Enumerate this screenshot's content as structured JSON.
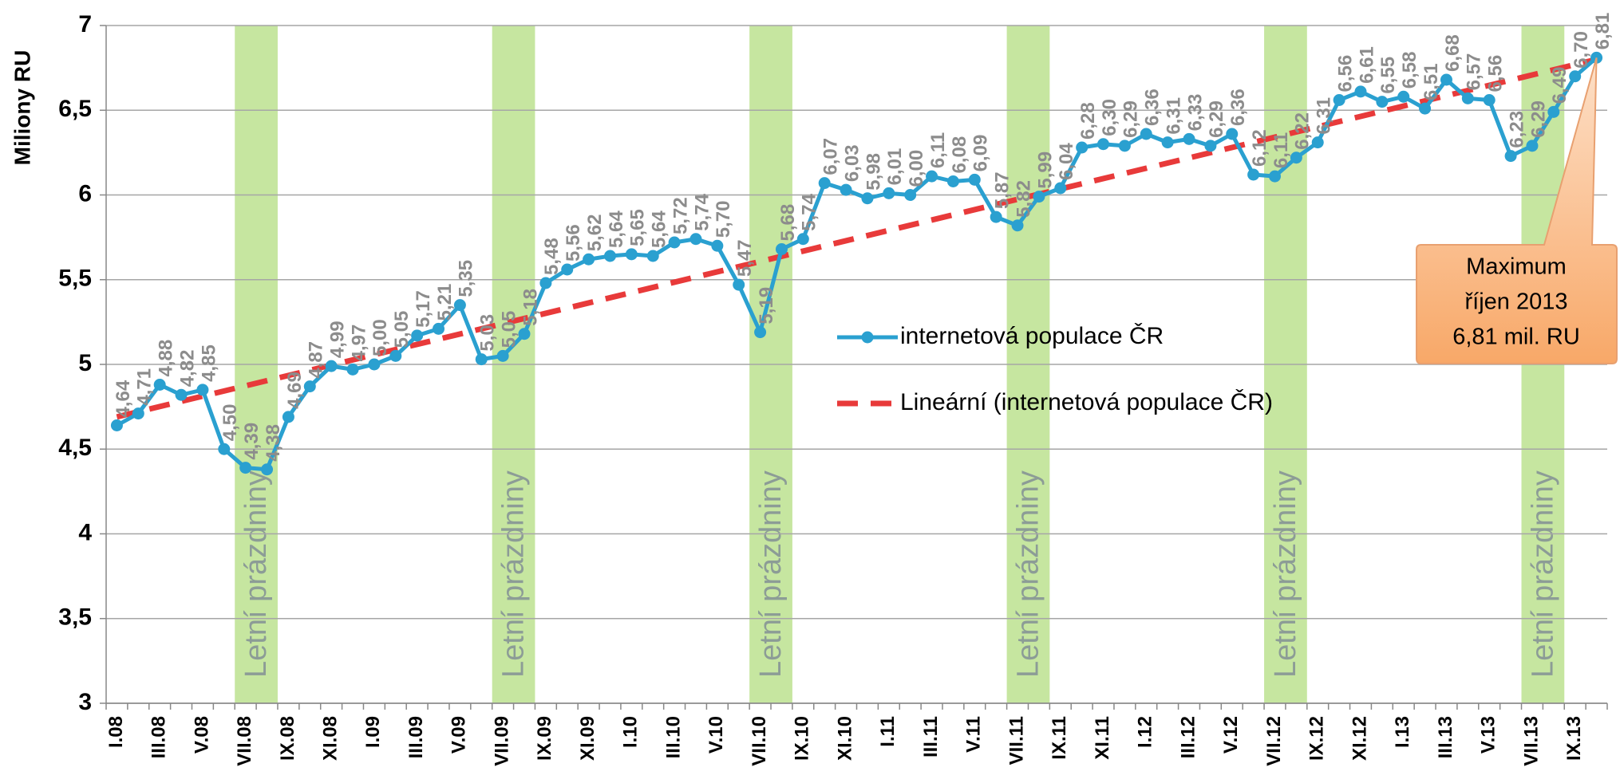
{
  "chart_data": {
    "type": "line",
    "y_label": "Miliony RU",
    "categories": [
      "I.08",
      null,
      "III.08",
      null,
      "V.08",
      null,
      "VII.08",
      null,
      "IX.08",
      null,
      "XI.08",
      null,
      "I.09",
      null,
      "III.09",
      null,
      "V.09",
      null,
      "VII.09",
      null,
      "IX.09",
      null,
      "XI.09",
      null,
      "I.10",
      null,
      "III.10",
      null,
      "V.10",
      null,
      "VII.10",
      null,
      "IX.10",
      null,
      "XI.10",
      null,
      "I.11",
      null,
      "III.11",
      null,
      "V.11",
      null,
      "VII.11",
      null,
      "IX.11",
      null,
      "XI.11",
      null,
      "I.12",
      null,
      "III.12",
      null,
      "V.12",
      null,
      "VII.12",
      null,
      "IX.12",
      null,
      "XI.12",
      null,
      "I.13",
      null,
      "III.13",
      null,
      "V.13",
      null,
      "VII.13",
      null,
      "IX.13",
      null
    ],
    "series": [
      {
        "name": "internetová populace ČR",
        "color": "#2aa0d0",
        "values": [
          4.64,
          4.71,
          4.88,
          4.82,
          4.85,
          4.5,
          4.39,
          4.38,
          4.69,
          4.87,
          4.99,
          4.97,
          5.0,
          5.05,
          5.17,
          5.21,
          5.35,
          5.03,
          5.05,
          5.18,
          5.48,
          5.56,
          5.62,
          5.64,
          5.65,
          5.64,
          5.72,
          5.74,
          5.7,
          5.47,
          5.19,
          5.68,
          5.74,
          6.07,
          6.03,
          5.98,
          6.01,
          6.0,
          6.11,
          6.08,
          6.09,
          5.87,
          5.82,
          5.99,
          6.04,
          6.28,
          6.3,
          6.29,
          6.36,
          6.31,
          6.33,
          6.29,
          6.36,
          6.12,
          6.11,
          6.22,
          6.31,
          6.56,
          6.61,
          6.55,
          6.58,
          6.51,
          6.68,
          6.57,
          6.56,
          6.23,
          6.29,
          6.49,
          6.7,
          6.81
        ],
        "value_labels": [
          "4,64",
          "4,71",
          "4,88",
          "4,82",
          "4,85",
          "4,50",
          "4,39",
          "4,38",
          "4,69",
          "4,87",
          "4,99",
          "4,97",
          "5,00",
          "5,05",
          "5,17",
          "5,21",
          "5,35",
          "5,03",
          "5,05",
          "5,18",
          "5,48",
          "5,56",
          "5,62",
          "5,64",
          "5,65",
          "5,64",
          "5,72",
          "5,74",
          "5,70",
          "5,47",
          "5,19",
          "5,68",
          "5,74",
          "6,07",
          "6,03",
          "5,98",
          "6,01",
          "6,00",
          "6,11",
          "6,08",
          "6,09",
          "5,87",
          "5,82",
          "5,99",
          "6,04",
          "6,28",
          "6,30",
          "6,29",
          "6,36",
          "6,31",
          "6,33",
          "6,29",
          "6,36",
          "6,12",
          "6,11",
          "6,22",
          "6,31",
          "6,56",
          "6,61",
          "6,55",
          "6,58",
          "6,51",
          "6,68",
          "6,57",
          "6,56",
          "6,23",
          "6,29",
          "6,49",
          "6,70",
          "6,81"
        ]
      }
    ],
    "trendline": {
      "name": "Lineární (internetová populace ČR)",
      "color": "#e83a3a",
      "start": 4.69,
      "end": 6.8
    },
    "bands": [
      {
        "label": "Letní prázdniny",
        "category": "VII.08"
      },
      {
        "label": "Letní prázdniny",
        "category": "VII.09"
      },
      {
        "label": "Letní prázdniny",
        "category": "VII.10"
      },
      {
        "label": "Letní prázdniny",
        "category": "VII.11"
      },
      {
        "label": "Letní prázdniny",
        "category": "VII.12"
      },
      {
        "label": "Letní prázdniny",
        "category": "VII.13"
      }
    ],
    "band_color": "#c6e6a0",
    "callout": [
      "Maximum",
      "říjen 2013",
      "6,81 mil. RU"
    ],
    "ylim": [
      3,
      7
    ],
    "yticks": [
      3,
      {
        "value": 3.5,
        "label": "3,5"
      },
      4,
      {
        "value": 4.5,
        "label": "4,5"
      },
      5,
      {
        "value": 5.5,
        "label": "5,5"
      },
      6,
      {
        "value": 6.5,
        "label": "6,5"
      },
      7
    ],
    "grid": true
  }
}
